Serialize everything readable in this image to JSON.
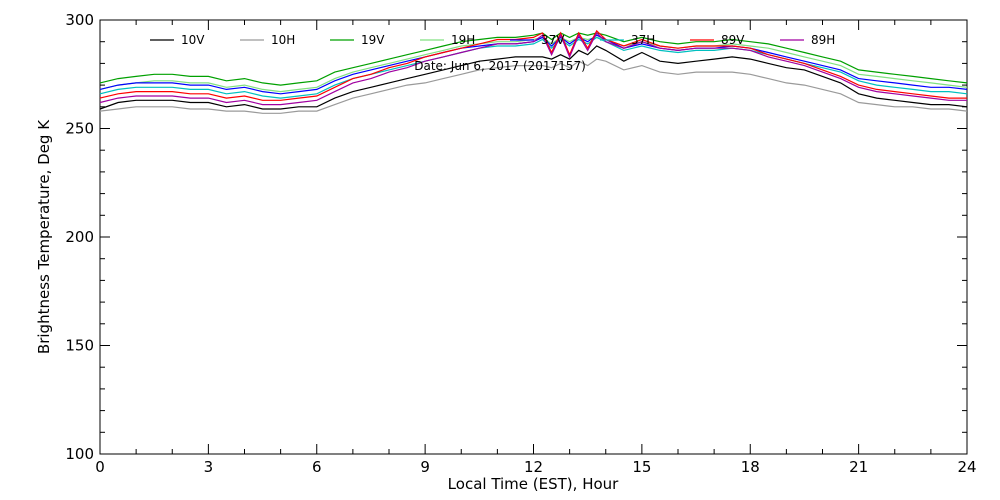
{
  "chart_data": {
    "type": "line",
    "title": "",
    "annotation": "Date: Jun  6, 2017 (2017157)",
    "xlabel": "Local Time (EST), Hour",
    "ylabel": "Brightness Temperature, Deg K",
    "xlim": [
      0,
      24
    ],
    "ylim": [
      100,
      300
    ],
    "xticks": [
      0,
      3,
      6,
      9,
      12,
      15,
      18,
      21,
      24
    ],
    "yticks": [
      100,
      150,
      200,
      250,
      300
    ],
    "grid": false,
    "legend_position": "top",
    "x": [
      0,
      0.5,
      1,
      1.5,
      2,
      2.5,
      3,
      3.5,
      4,
      4.5,
      5,
      5.5,
      6,
      6.5,
      7,
      7.5,
      8,
      8.5,
      9,
      9.5,
      10,
      10.5,
      11,
      11.5,
      12,
      12.25,
      12.5,
      12.75,
      13,
      13.25,
      13.5,
      13.75,
      14,
      14.5,
      15,
      15.5,
      16,
      16.5,
      17,
      17.5,
      18,
      18.5,
      19,
      19.5,
      20,
      20.5,
      21,
      21.5,
      22,
      22.5,
      23,
      23.5,
      24
    ],
    "series": [
      {
        "name": "10V",
        "color": "#000000",
        "values": [
          259,
          262,
          263,
          263,
          263,
          262,
          262,
          260,
          261,
          259,
          259,
          260,
          260,
          264,
          267,
          269,
          271,
          273,
          275,
          277,
          279,
          281,
          282,
          283,
          283,
          283,
          282,
          284,
          282,
          286,
          284,
          288,
          286,
          281,
          285,
          281,
          280,
          281,
          282,
          283,
          282,
          280,
          278,
          277,
          274,
          271,
          266,
          264,
          263,
          262,
          261,
          261,
          260
        ]
      },
      {
        "name": "10H",
        "color": "#9a9a9a",
        "values": [
          258,
          259,
          260,
          260,
          260,
          259,
          259,
          258,
          258,
          257,
          257,
          258,
          258,
          261,
          264,
          266,
          268,
          270,
          271,
          273,
          275,
          277,
          278,
          279,
          279,
          279,
          278,
          280,
          278,
          281,
          279,
          282,
          281,
          277,
          279,
          276,
          275,
          276,
          276,
          276,
          275,
          273,
          271,
          270,
          268,
          266,
          262,
          261,
          260,
          260,
          259,
          259,
          258
        ]
      },
      {
        "name": "19V",
        "color": "#00a000",
        "values": [
          271,
          273,
          274,
          275,
          275,
          274,
          274,
          272,
          273,
          271,
          270,
          271,
          272,
          276,
          278,
          280,
          282,
          284,
          286,
          288,
          290,
          291,
          292,
          292,
          293,
          294,
          291,
          294,
          292,
          294,
          293,
          294,
          293,
          290,
          292,
          290,
          289,
          290,
          290,
          291,
          290,
          289,
          287,
          285,
          283,
          281,
          277,
          276,
          275,
          274,
          273,
          272,
          271
        ]
      },
      {
        "name": "19H",
        "color": "#80e080",
        "values": [
          268,
          270,
          271,
          272,
          272,
          271,
          271,
          269,
          270,
          268,
          267,
          268,
          269,
          273,
          276,
          278,
          280,
          282,
          284,
          286,
          288,
          289,
          290,
          290,
          291,
          292,
          289,
          292,
          290,
          292,
          291,
          292,
          291,
          288,
          290,
          288,
          287,
          288,
          288,
          289,
          288,
          287,
          285,
          283,
          281,
          279,
          275,
          274,
          273,
          272,
          271,
          270,
          269
        ]
      },
      {
        "name": "37V",
        "color": "#0000ff",
        "values": [
          268,
          270,
          271,
          271,
          271,
          270,
          270,
          268,
          269,
          267,
          266,
          267,
          268,
          272,
          275,
          277,
          279,
          281,
          283,
          285,
          287,
          288,
          289,
          289,
          290,
          292,
          288,
          292,
          289,
          292,
          290,
          293,
          291,
          287,
          289,
          287,
          286,
          287,
          287,
          288,
          287,
          285,
          283,
          281,
          279,
          277,
          273,
          272,
          271,
          270,
          269,
          269,
          268
        ]
      },
      {
        "name": "37H",
        "color": "#00c0c0",
        "values": [
          266,
          268,
          269,
          269,
          269,
          268,
          268,
          266,
          267,
          265,
          264,
          265,
          266,
          270,
          273,
          275,
          277,
          279,
          281,
          283,
          285,
          287,
          288,
          288,
          289,
          291,
          287,
          291,
          288,
          291,
          289,
          292,
          290,
          286,
          288,
          286,
          285,
          286,
          286,
          287,
          286,
          284,
          282,
          280,
          278,
          276,
          272,
          270,
          269,
          268,
          267,
          267,
          266
        ]
      },
      {
        "name": "89V",
        "color": "#ff0000",
        "values": [
          264,
          266,
          267,
          267,
          267,
          266,
          266,
          264,
          265,
          263,
          263,
          264,
          265,
          269,
          273,
          275,
          278,
          280,
          283,
          285,
          287,
          289,
          291,
          291,
          292,
          294,
          285,
          294,
          284,
          294,
          287,
          295,
          291,
          288,
          291,
          288,
          287,
          288,
          288,
          288,
          287,
          284,
          282,
          280,
          277,
          274,
          270,
          268,
          267,
          266,
          265,
          264,
          264
        ]
      },
      {
        "name": "89H",
        "color": "#a000a0",
        "values": [
          262,
          264,
          265,
          265,
          265,
          264,
          264,
          262,
          263,
          261,
          261,
          262,
          263,
          267,
          271,
          273,
          276,
          278,
          281,
          283,
          285,
          287,
          289,
          289,
          290,
          293,
          284,
          293,
          283,
          293,
          286,
          294,
          290,
          287,
          290,
          287,
          286,
          287,
          287,
          287,
          286,
          283,
          281,
          279,
          276,
          273,
          269,
          267,
          266,
          265,
          264,
          263,
          263
        ]
      }
    ]
  }
}
